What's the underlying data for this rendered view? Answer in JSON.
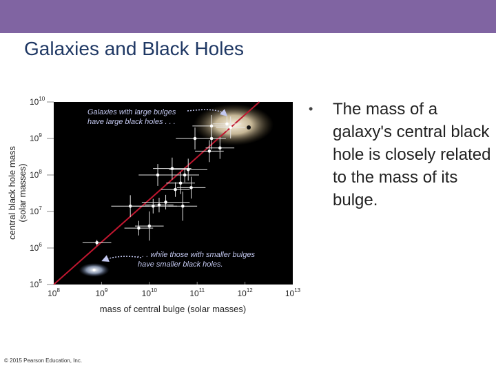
{
  "header": {
    "title": "Galaxies and Black Holes"
  },
  "bullet": {
    "text": "The mass of a galaxy's central black hole is closely related to the mass of its bulge."
  },
  "footer": {
    "copyright": "© 2015 Pearson Education, Inc."
  },
  "colors": {
    "header_bar": "#8064a2",
    "title_text": "#1f3864",
    "plot_background": "#000000",
    "trend_line": "#c0162f",
    "annotation_text": "#c3c8f0"
  },
  "chart_data": {
    "type": "scatter",
    "x_scale": "log",
    "y_scale": "log",
    "xlabel": "mass of central bulge (solar masses)",
    "ylabel": "central black hole mass (solar masses)",
    "xlim": [
      100000000,
      10000000000000
    ],
    "ylim": [
      100000,
      10000000000
    ],
    "x_ticks": [
      {
        "value": 100000000,
        "base": "10",
        "exp": "8"
      },
      {
        "value": 1000000000,
        "base": "10",
        "exp": "9"
      },
      {
        "value": 10000000000,
        "base": "10",
        "exp": "10"
      },
      {
        "value": 100000000000,
        "base": "10",
        "exp": "11"
      },
      {
        "value": 1000000000000,
        "base": "10",
        "exp": "12"
      },
      {
        "value": 10000000000000,
        "base": "10",
        "exp": "13"
      }
    ],
    "y_ticks": [
      {
        "value": 100000,
        "base": "10",
        "exp": "5"
      },
      {
        "value": 1000000,
        "base": "10",
        "exp": "6"
      },
      {
        "value": 10000000,
        "base": "10",
        "exp": "7"
      },
      {
        "value": 100000000,
        "base": "10",
        "exp": "8"
      },
      {
        "value": 1000000000,
        "base": "10",
        "exp": "9"
      },
      {
        "value": 10000000000,
        "base": "10",
        "exp": "10"
      }
    ],
    "trend_line": {
      "x": [
        100000000,
        2000000000000
      ],
      "y": [
        100000,
        10000000000
      ]
    },
    "points": [
      {
        "x": 800000000,
        "y": 1400000,
        "ex": 0.3,
        "ey": 0.08
      },
      {
        "x": 4000000000,
        "y": 14000000,
        "ex": 0.4,
        "ey": 0.3
      },
      {
        "x": 6000000000,
        "y": 3500000,
        "ex": 0.3,
        "ey": 0.2
      },
      {
        "x": 10000000000,
        "y": 4000000,
        "ex": 0.3,
        "ey": 0.4
      },
      {
        "x": 12000000000,
        "y": 14000000,
        "ex": 0.5,
        "ey": 0.2
      },
      {
        "x": 16000000000,
        "y": 15000000,
        "ex": 0.3,
        "ey": 0.2
      },
      {
        "x": 22000000000,
        "y": 18000000,
        "ex": 0.5,
        "ey": 0.2
      },
      {
        "x": 50000000000,
        "y": 14000000,
        "ex": 0.3,
        "ey": 0.4
      },
      {
        "x": 15000000000,
        "y": 100000000,
        "ex": 0.4,
        "ey": 0.3
      },
      {
        "x": 30000000000,
        "y": 150000000,
        "ex": 0.4,
        "ey": 0.3
      },
      {
        "x": 35000000000,
        "y": 40000000,
        "ex": 0.3,
        "ey": 0.2
      },
      {
        "x": 45000000000,
        "y": 60000000,
        "ex": 0.3,
        "ey": 0.3
      },
      {
        "x": 55000000000,
        "y": 100000000,
        "ex": 0.3,
        "ey": 0.2
      },
      {
        "x": 65000000000,
        "y": 140000000,
        "ex": 0.4,
        "ey": 0.3
      },
      {
        "x": 75000000000,
        "y": 45000000,
        "ex": 0.3,
        "ey": 0.3
      },
      {
        "x": 90000000000,
        "y": 1000000000,
        "ex": 0.4,
        "ey": 0.3
      },
      {
        "x": 180000000000,
        "y": 450000000,
        "ex": 0.3,
        "ey": 0.3
      },
      {
        "x": 200000000000,
        "y": 1000000000,
        "ex": 0.3,
        "ey": 0.3
      },
      {
        "x": 300000000000,
        "y": 550000000,
        "ex": 0.3,
        "ey": 0.3
      },
      {
        "x": 200000000000,
        "y": 2200000000,
        "ex": 0.4,
        "ey": 0.3
      },
      {
        "x": 420000000000,
        "y": 2500000000,
        "ex": 0.3,
        "ey": 0.2
      },
      {
        "x": 500000000000,
        "y": 2000000000,
        "ex": 0.3,
        "ey": 0.3
      }
    ],
    "highlight_points": [
      {
        "x": 1200000000000,
        "y": 2000000000,
        "shape": "large-bulge-galaxy"
      },
      {
        "x": 700000000,
        "y": 250000,
        "shape": "small-bulge-galaxy"
      }
    ],
    "annotations": [
      {
        "lines": [
          "Galaxies with large bulges",
          "have large black holes . . ."
        ]
      },
      {
        "lines": [
          ". . . while those with smaller bulges",
          "have smaller black holes."
        ]
      }
    ]
  }
}
